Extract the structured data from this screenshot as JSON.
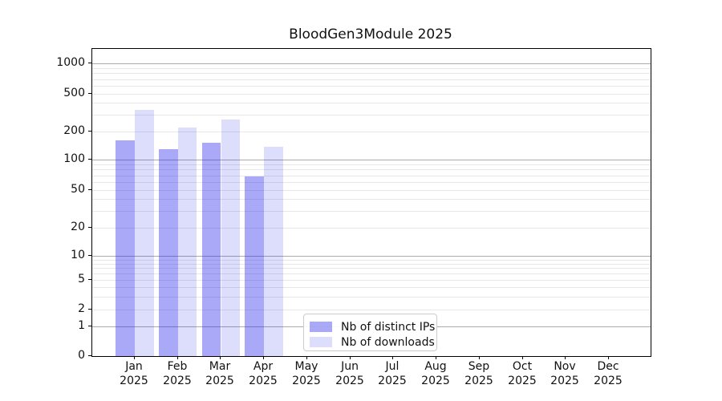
{
  "chart": {
    "title": "BloodGen3Module 2025"
  },
  "chart_data": {
    "type": "bar",
    "title": "BloodGen3Module 2025",
    "months": [
      "Jan",
      "Feb",
      "Mar",
      "Apr",
      "May",
      "Jun",
      "Jul",
      "Aug",
      "Sep",
      "Oct",
      "Nov",
      "Dec"
    ],
    "year": "2025",
    "series": [
      {
        "name": "Nb of distinct IPs",
        "color": "rgba(30,30,235,0.385)",
        "color_hex_on_white": "#aaaaf9",
        "values": [
          162,
          129,
          152,
          68,
          null,
          null,
          null,
          null,
          null,
          null,
          null,
          null
        ]
      },
      {
        "name": "Nb of downloads",
        "color": "rgba(30,30,235,0.15)",
        "color_hex_on_white": "#dcdcfb",
        "values": [
          340,
          220,
          266,
          137,
          null,
          null,
          null,
          null,
          null,
          null,
          null,
          null
        ]
      }
    ],
    "yticks": [
      0,
      1,
      2,
      5,
      10,
      20,
      50,
      100,
      200,
      500,
      1000
    ],
    "yscale": "symlog",
    "ylim": [
      0,
      1400
    ],
    "xlabel": "",
    "ylabel": "",
    "grid": "horizontal, major (decades) dark + minor light",
    "legend_position": "inside axes, bottom center-left",
    "major_grid_color": "#ababab",
    "minor_grid_color": "#e7e7e7"
  }
}
